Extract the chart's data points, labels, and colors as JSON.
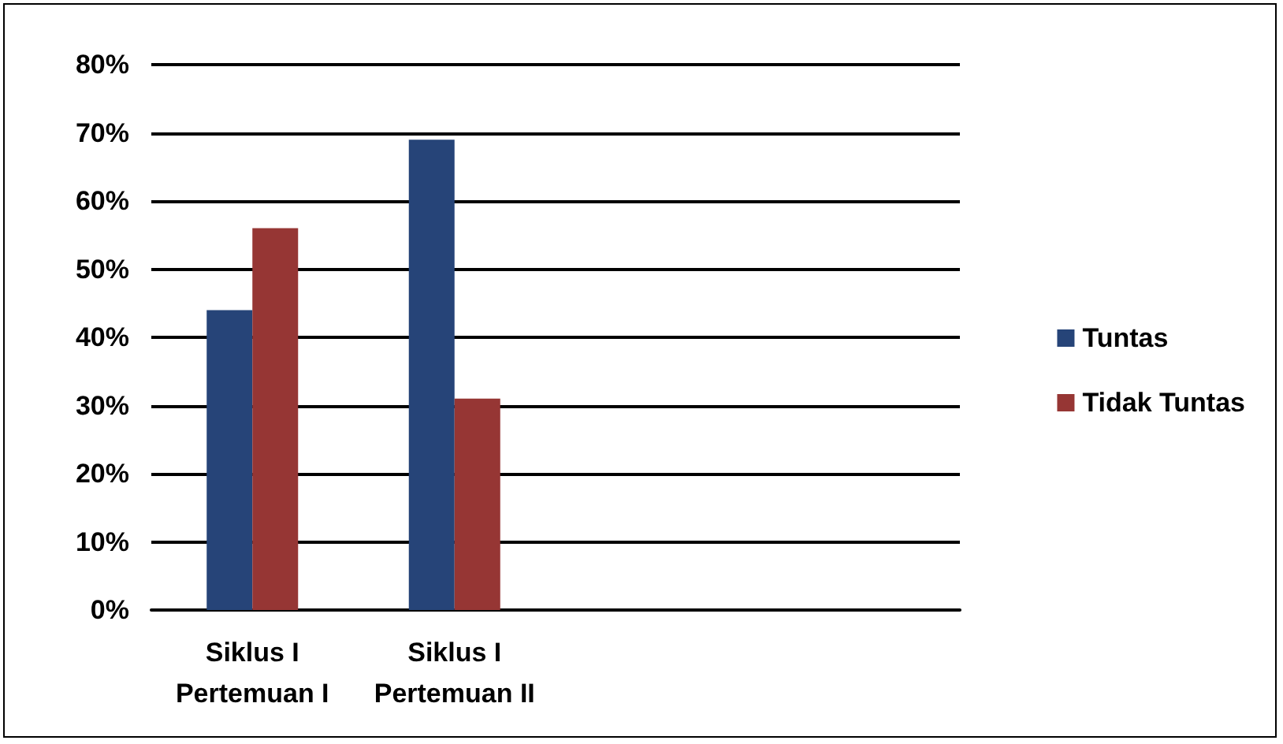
{
  "chart_data": {
    "type": "bar",
    "categories": [
      "Siklus I\nPertemuan I",
      "Siklus I\nPertemuan II",
      null,
      null
    ],
    "series": [
      {
        "name": "Tuntas",
        "color": "#264478",
        "values": [
          44,
          69,
          null,
          null
        ]
      },
      {
        "name": "Tidak Tuntas",
        "color": "#963634",
        "values": [
          56,
          31,
          null,
          null
        ]
      }
    ],
    "ylim": [
      0,
      80
    ],
    "yticks": [
      {
        "value": 0,
        "label": "0%"
      },
      {
        "value": 10,
        "label": "10%"
      },
      {
        "value": 20,
        "label": "20%"
      },
      {
        "value": 30,
        "label": "30%"
      },
      {
        "value": 40,
        "label": "40%"
      },
      {
        "value": 50,
        "label": "50%"
      },
      {
        "value": 60,
        "label": "60%"
      },
      {
        "value": 70,
        "label": "70%"
      },
      {
        "value": 80,
        "label": "80%"
      }
    ],
    "grid": "y",
    "legend": "right"
  }
}
